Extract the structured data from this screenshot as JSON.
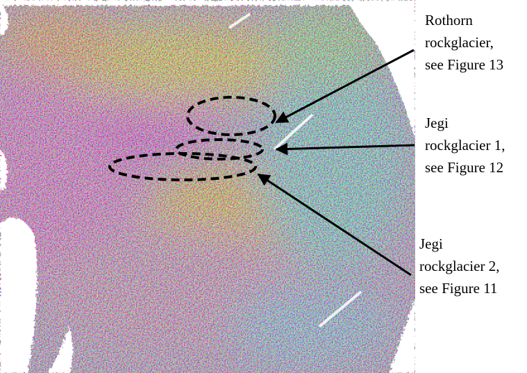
{
  "annotations": [
    {
      "lines": [
        "Rothorn",
        "rockglacier,",
        "see Figure 13"
      ]
    },
    {
      "lines": [
        "Jegi",
        "rockglacier 1,",
        "see Figure 12"
      ]
    },
    {
      "lines": [
        "Jegi",
        "rockglacier 2,",
        "see Figure 11"
      ]
    }
  ]
}
